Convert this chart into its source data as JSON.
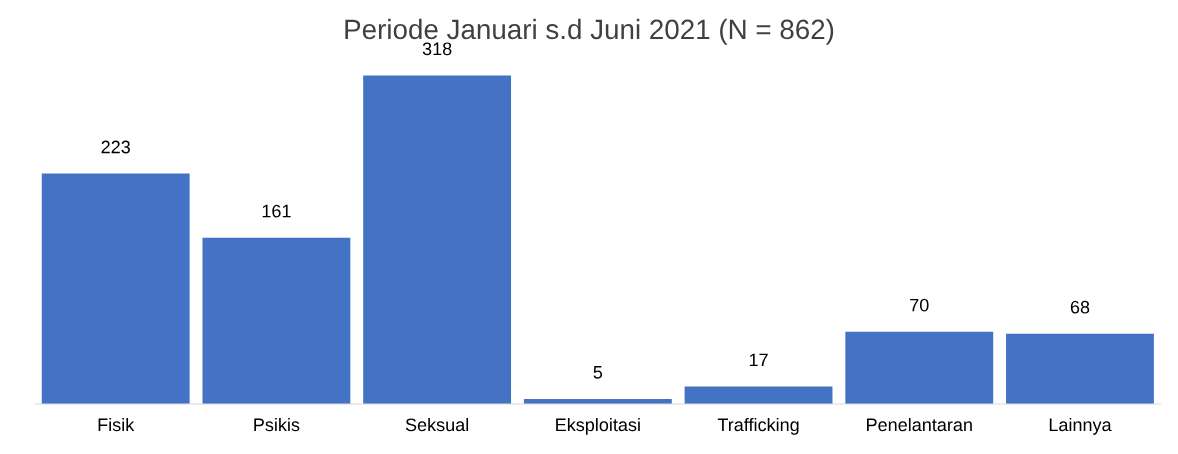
{
  "chart_data": {
    "type": "bar",
    "title": "Periode Januari s.d Juni 2021 (N = 862)",
    "categories": [
      "Fisik",
      "Psikis",
      "Seksual",
      "Eksploitasi",
      "Trafficking",
      "Penelantaran",
      "Lainnya"
    ],
    "values": [
      223,
      161,
      318,
      5,
      17,
      70,
      68
    ],
    "color": "#4472c4",
    "data_labels": true,
    "grid": false,
    "legend": false
  }
}
